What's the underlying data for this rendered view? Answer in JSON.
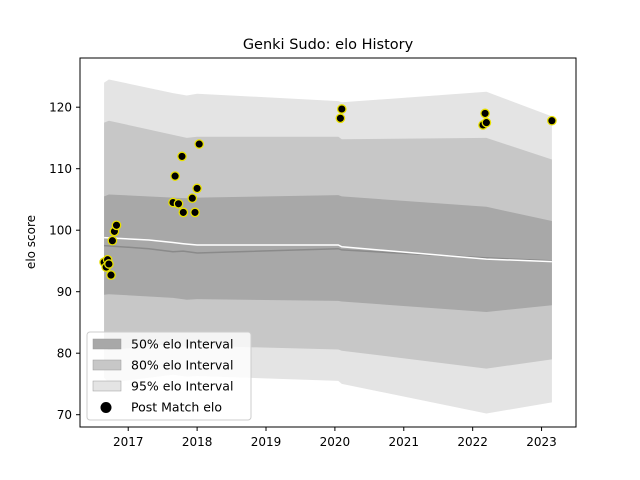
{
  "chart_data": {
    "type": "area",
    "title": "Genki Sudo: elo History",
    "xlabel": "",
    "ylabel": "elo score",
    "xlim": [
      2016.3,
      2023.5
    ],
    "ylim": [
      68,
      128
    ],
    "x_ticks": [
      2017,
      2018,
      2019,
      2020,
      2021,
      2022,
      2023
    ],
    "x_tick_labels": [
      "2017",
      "2018",
      "2019",
      "2020",
      "2021",
      "2022",
      "2023"
    ],
    "y_ticks": [
      70,
      80,
      90,
      100,
      110,
      120
    ],
    "y_tick_labels": [
      "70",
      "80",
      "90",
      "100",
      "110",
      "120"
    ],
    "grid": false,
    "legend_position": "lower-left",
    "colors": {
      "band_50": "#a8a8a8",
      "band_80": "#c7c7c7",
      "band_95": "#e4e4e4",
      "median_line": "#8a8a8a",
      "mean_line": "#ffffff",
      "point_fill": "#000000",
      "point_edge": "#e8e000"
    },
    "bands": [
      {
        "name": "95% elo Interval",
        "x": [
          2016.65,
          2016.72,
          2017.65,
          2017.85,
          2018.0,
          2020.05,
          2020.1,
          2022.2,
          2023.15
        ],
        "upper": [
          124.0,
          124.5,
          122.3,
          121.9,
          122.2,
          121.0,
          120.8,
          122.5,
          118.5
        ],
        "lower": [
          76.0,
          75.2,
          76.5,
          76.2,
          76.3,
          75.5,
          75.0,
          70.2,
          72.0
        ]
      },
      {
        "name": "80% elo Interval",
        "x": [
          2016.65,
          2016.72,
          2017.65,
          2017.85,
          2018.0,
          2020.05,
          2020.1,
          2022.2,
          2023.15
        ],
        "upper": [
          117.5,
          117.8,
          115.5,
          115.0,
          115.2,
          115.2,
          114.8,
          115.0,
          111.5
        ],
        "lower": [
          81.0,
          80.5,
          81.5,
          81.0,
          81.2,
          80.6,
          80.4,
          77.5,
          79.0
        ]
      },
      {
        "name": "50% elo Interval",
        "x": [
          2016.65,
          2016.72,
          2017.65,
          2017.85,
          2018.0,
          2020.05,
          2020.1,
          2022.2,
          2023.15
        ],
        "upper": [
          105.5,
          105.8,
          105.3,
          105.2,
          105.3,
          105.7,
          105.5,
          103.8,
          101.5
        ],
        "lower": [
          89.5,
          89.6,
          89.0,
          88.7,
          88.8,
          88.5,
          88.4,
          86.7,
          87.8
        ]
      }
    ],
    "median_line": {
      "x": [
        2016.65,
        2017.3,
        2017.65,
        2017.8,
        2018.0,
        2020.05,
        2020.1,
        2022.2,
        2023.15
      ],
      "y": [
        97.5,
        97.0,
        96.5,
        96.6,
        96.3,
        97.0,
        96.8,
        95.5,
        95.0
      ]
    },
    "mean_line": {
      "x": [
        2016.65,
        2017.3,
        2017.65,
        2017.8,
        2018.0,
        2020.05,
        2020.1,
        2022.2,
        2023.15
      ],
      "y": [
        98.8,
        98.4,
        98.0,
        97.8,
        97.6,
        97.6,
        97.3,
        95.3,
        94.9
      ]
    },
    "points": {
      "name": "Post Match elo",
      "x": [
        2016.65,
        2016.68,
        2016.7,
        2016.72,
        2016.75,
        2016.77,
        2016.8,
        2016.83,
        2017.65,
        2017.68,
        2017.73,
        2017.78,
        2017.8,
        2017.93,
        2017.97,
        2018.0,
        2018.03,
        2020.08,
        2020.1,
        2022.15,
        2022.18,
        2022.2,
        2023.15
      ],
      "y": [
        94.8,
        94.0,
        95.2,
        94.5,
        92.7,
        98.3,
        99.8,
        100.8,
        104.5,
        108.8,
        104.3,
        112.0,
        102.9,
        105.2,
        102.9,
        106.8,
        114.0,
        118.2,
        119.7,
        117.1,
        119.0,
        117.5,
        117.8
      ]
    },
    "legend": [
      {
        "key": "band_50",
        "label": "50% elo Interval"
      },
      {
        "key": "band_80",
        "label": "80% elo Interval"
      },
      {
        "key": "band_95",
        "label": "95% elo Interval"
      },
      {
        "key": "points",
        "label": "Post Match elo"
      }
    ]
  }
}
